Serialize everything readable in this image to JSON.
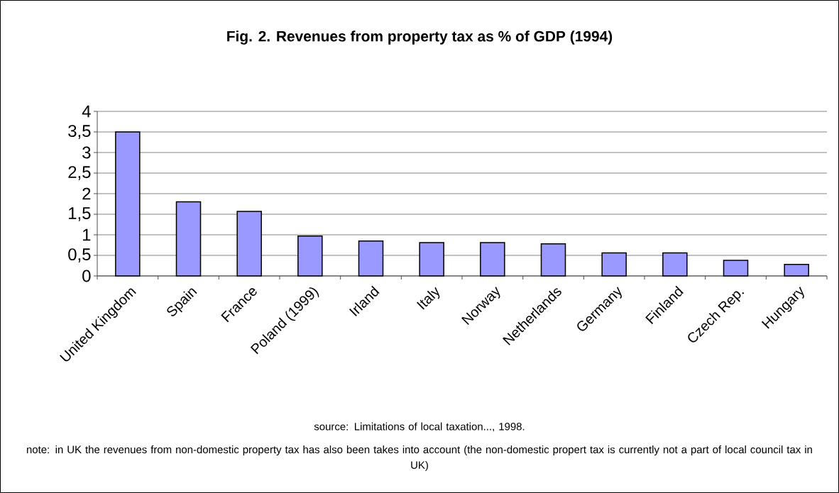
{
  "chart_data": {
    "type": "bar",
    "title": "Fig. 2. Revenues from property tax as % of GDP (1994)",
    "categories": [
      "United Kingdom",
      "Spain",
      "France",
      "Poland (1999)",
      "Irland",
      "Italy",
      "Norway",
      "Netherlands",
      "Germany",
      "Finland",
      "Czech Rep.",
      "Hungary"
    ],
    "values": [
      3.5,
      1.8,
      1.57,
      0.97,
      0.85,
      0.81,
      0.81,
      0.78,
      0.56,
      0.56,
      0.38,
      0.28
    ],
    "color": "#9999ff",
    "ylim": [
      0,
      4
    ],
    "yticks": [
      0,
      {
        "value": 0.5,
        "label": "0,5"
      },
      1,
      {
        "value": 1.5,
        "label": "1,5"
      },
      2,
      {
        "value": 2.5,
        "label": "2,5"
      },
      3,
      {
        "value": 3.5,
        "label": "3,5"
      },
      4
    ],
    "grid": "y",
    "annotations": [
      "source: Limitations of local taxation..., 1998.",
      "note: in UK the revenues from non-domestic property tax has also been takes into account (the non-domestic propert tax is currently not a part of local council tax in UK)"
    ]
  }
}
